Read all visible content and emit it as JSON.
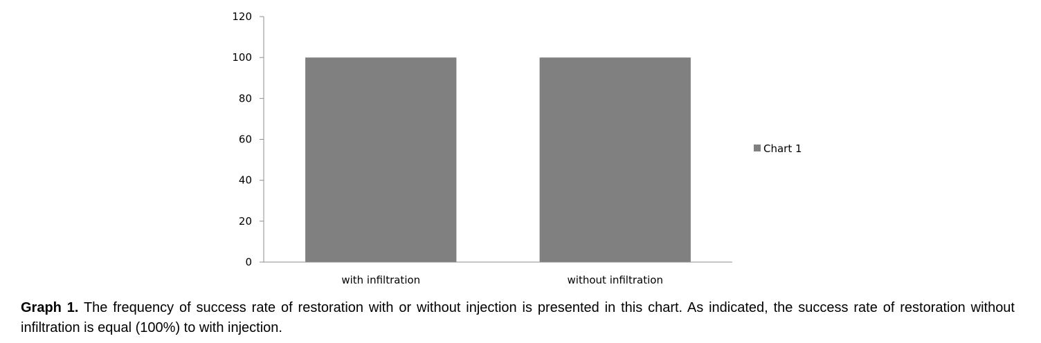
{
  "chart_data": {
    "type": "bar",
    "categories": [
      "with infiltration",
      "without infiltration"
    ],
    "series": [
      {
        "name": "Chart 1",
        "values": [
          100,
          100
        ],
        "color": "#808080"
      }
    ],
    "ylim": [
      0,
      120
    ],
    "yticks": [
      "0",
      "20",
      "40",
      "60",
      "80",
      "100",
      "120"
    ],
    "grid": false,
    "legend_position": "right"
  },
  "caption": {
    "label": "Graph 1.",
    "text": " The frequency of success rate of restoration with or without injection is presented in this chart.  As indicated, the success rate of restoration without infiltration is equal (100%) to with injection."
  }
}
